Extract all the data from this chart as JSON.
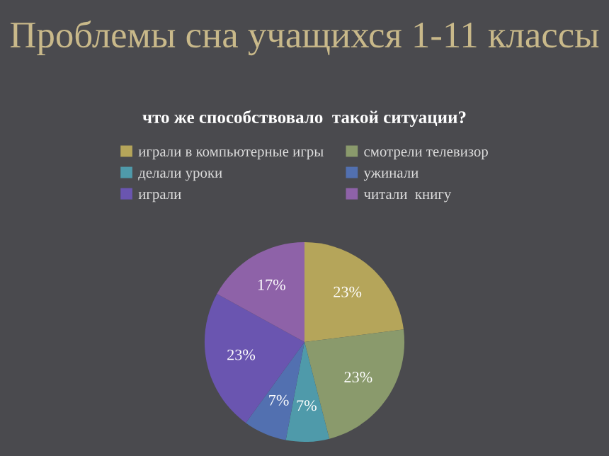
{
  "chart_data": {
    "type": "pie",
    "title": "Проблемы сна учащихся 1-11 классы",
    "subtitle": "что же способствовало  такой ситуации?",
    "categories": [
      "играли в компьютерные игры",
      "смотрели телевизор",
      "делали уроки",
      "ужинали",
      "играли",
      "читали  книгу"
    ],
    "values": [
      23,
      23,
      7,
      7,
      23,
      17
    ],
    "colors": [
      "#b5a55a",
      "#8a9a6c",
      "#4f9aaa",
      "#5270b0",
      "#6a55b0",
      "#8e62a8"
    ],
    "value_labels": [
      "23%",
      "23%",
      "7%",
      "7%",
      "23%",
      "17%"
    ],
    "legend": "top"
  }
}
